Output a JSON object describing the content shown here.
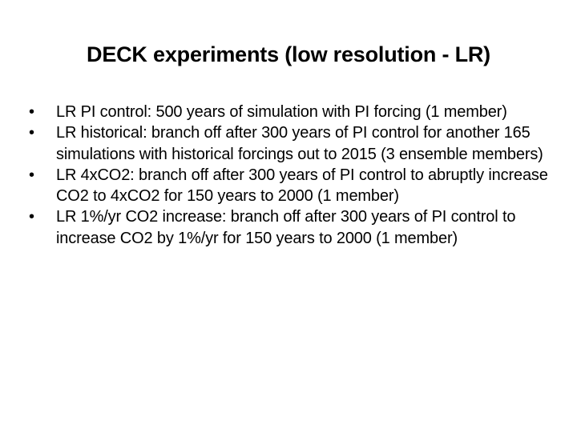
{
  "slide": {
    "title": "DECK experiments (low resolution - LR)",
    "bullet_marker": "•",
    "bullets": [
      "LR PI control: 500 years of simulation with PI forcing (1 member)",
      "LR historical: branch off after 300 years of PI control for another 165 simulations with historical forcings out to 2015 (3 ensemble members)",
      "LR 4xCO2: branch off after 300 years of PI control to abruptly increase CO2 to 4xCO2 for 150 years to 2000 (1 member)",
      "LR 1%/yr CO2 increase: branch off after 300 years of PI control to increase CO2 by 1%/yr for 150 years to 2000 (1 member)"
    ]
  }
}
